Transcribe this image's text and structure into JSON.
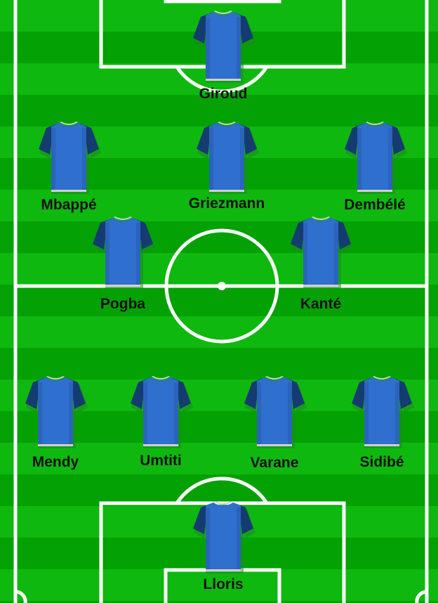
{
  "pitch": {
    "colors": {
      "stripe_light": "#0fb80f",
      "stripe_dark": "#03a103",
      "lines": "#ffffff"
    }
  },
  "jersey": {
    "icon": "jersey-icon",
    "colors": {
      "body": "#2f6fcd",
      "sleeves": "#143c70",
      "collar": "#d0d0d0",
      "shadow": "#1d8a1d"
    }
  },
  "players": [
    {
      "id": "giroud",
      "name": "Giroud"
    },
    {
      "id": "mbappe",
      "name": "Mbappé"
    },
    {
      "id": "griezmann",
      "name": "Griezmann"
    },
    {
      "id": "dembele",
      "name": "Dembélé"
    },
    {
      "id": "pogba",
      "name": "Pogba"
    },
    {
      "id": "kante",
      "name": "Kanté"
    },
    {
      "id": "mendy",
      "name": "Mendy"
    },
    {
      "id": "umtiti",
      "name": "Umtiti"
    },
    {
      "id": "varane",
      "name": "Varane"
    },
    {
      "id": "sidibe",
      "name": "Sidibé"
    },
    {
      "id": "lloris",
      "name": "Lloris"
    }
  ]
}
